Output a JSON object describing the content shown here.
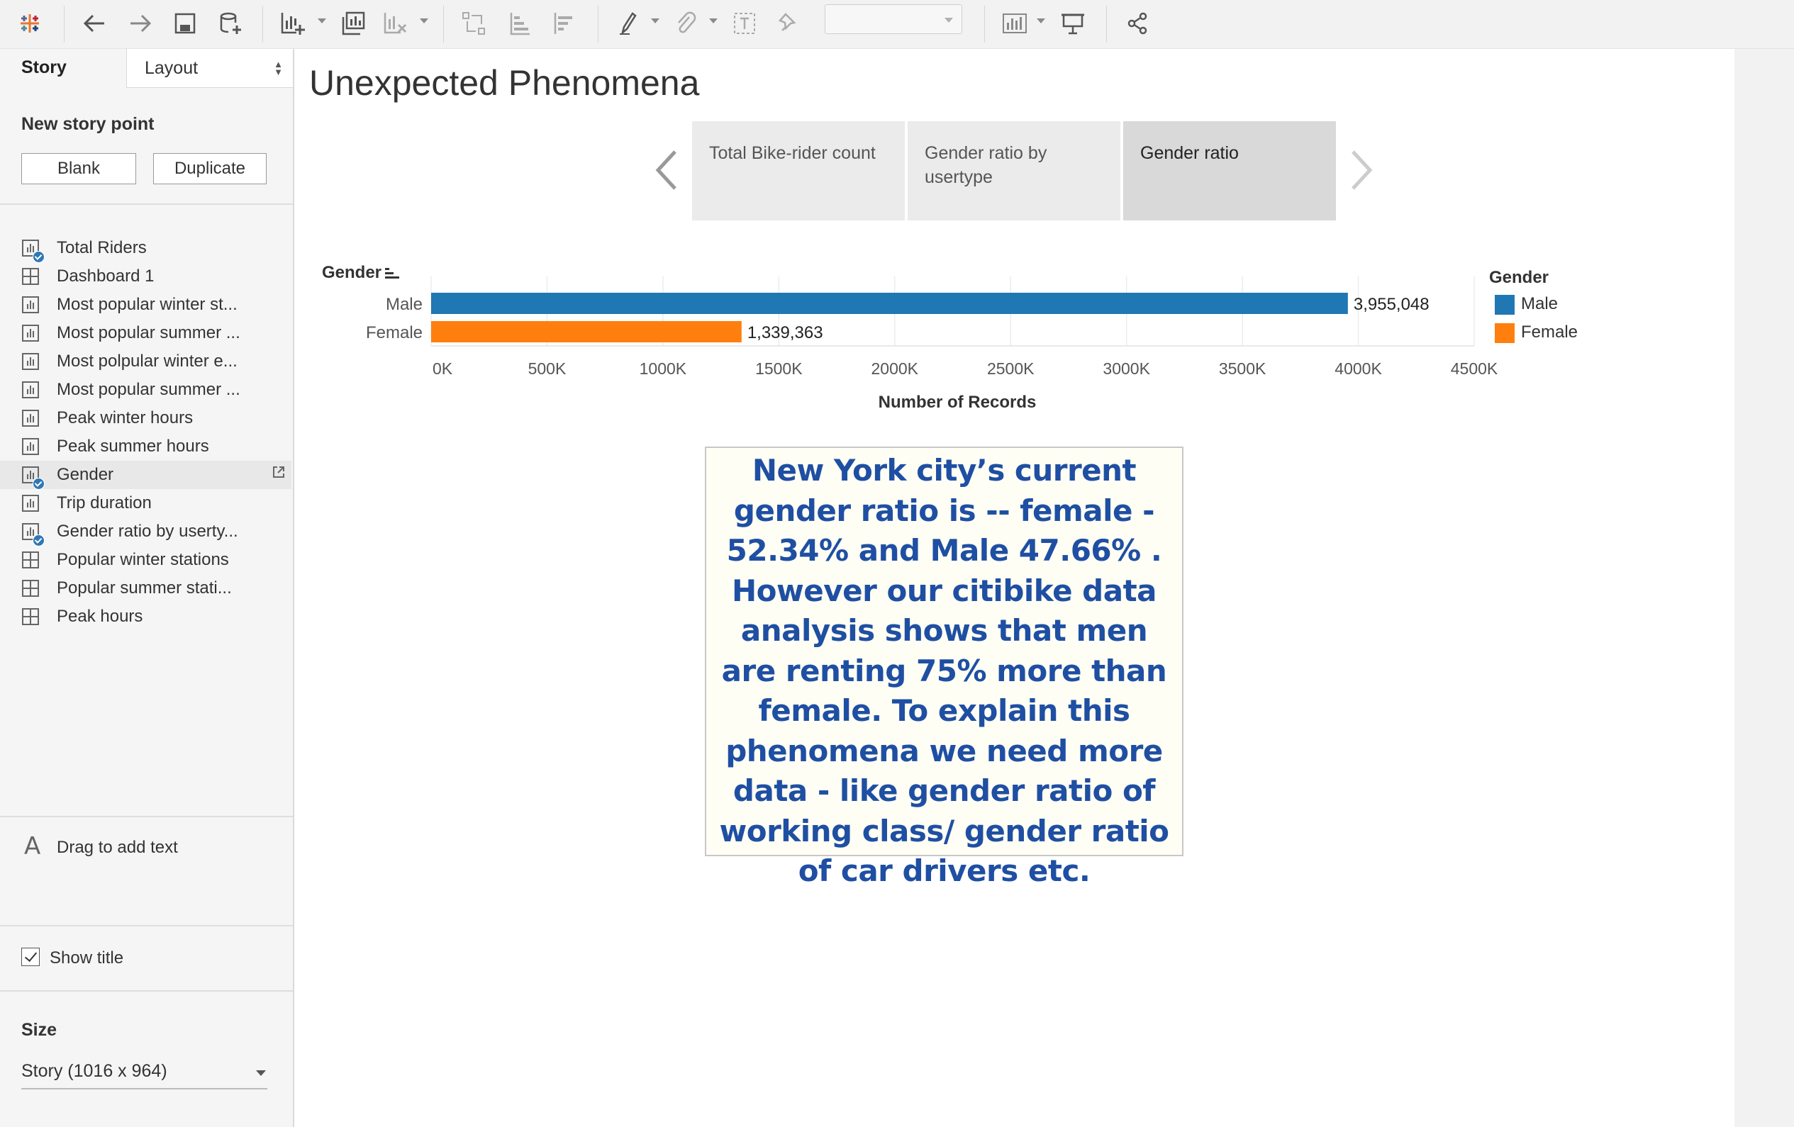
{
  "toolbar": {
    "font_select_value": ""
  },
  "left_pane": {
    "tabs": {
      "story": "Story",
      "layout": "Layout"
    },
    "new_story_point_title": "New story point",
    "buttons": {
      "blank": "Blank",
      "duplicate": "Duplicate"
    },
    "sheets": [
      {
        "label": "Total Riders",
        "icon": "chart-sheet",
        "checked": true
      },
      {
        "label": "Dashboard 1",
        "icon": "dashboard",
        "checked": false
      },
      {
        "label": "Most popular winter st...",
        "icon": "chart-sheet",
        "checked": false
      },
      {
        "label": "Most popular summer ...",
        "icon": "chart-sheet",
        "checked": false
      },
      {
        "label": "Most polpular winter e...",
        "icon": "chart-sheet",
        "checked": false
      },
      {
        "label": "Most popular summer ...",
        "icon": "chart-sheet",
        "checked": false
      },
      {
        "label": "Peak winter hours",
        "icon": "chart-sheet",
        "checked": false
      },
      {
        "label": "Peak summer hours",
        "icon": "chart-sheet",
        "checked": false
      },
      {
        "label": "Gender",
        "icon": "chart-sheet",
        "checked": true,
        "active": true
      },
      {
        "label": "Trip duration",
        "icon": "chart-sheet",
        "checked": false
      },
      {
        "label": "Gender ratio by userty...",
        "icon": "chart-sheet",
        "checked": true
      },
      {
        "label": "Popular winter stations",
        "icon": "dashboard",
        "checked": false
      },
      {
        "label": "Popular summer stati...",
        "icon": "dashboard",
        "checked": false
      },
      {
        "label": "Peak hours",
        "icon": "dashboard",
        "checked": false
      }
    ],
    "drag_to_add_text": "Drag to add text",
    "text_icon_glyph": "A",
    "show_title": {
      "label": "Show title",
      "checked": true
    },
    "size_title": "Size",
    "size_value": "Story (1016 x 964)"
  },
  "story": {
    "title": "Unexpected Phenomena",
    "points": [
      {
        "label": "Total Bike-rider count",
        "active": false
      },
      {
        "label": "Gender ratio by usertype",
        "active": false
      },
      {
        "label": "Gender ratio",
        "active": true
      }
    ]
  },
  "annotation": {
    "text": "New York city’s current gender ratio is -- female - 52.34% and Male 47.66% . However our citibike data analysis shows that men are renting 75% more than female. To explain this phenomena we need more data - like gender ratio of working class/ gender ratio of car drivers etc."
  },
  "chart_data": {
    "type": "bar",
    "orientation": "horizontal",
    "row_header": "Gender",
    "categories": [
      "Male",
      "Female"
    ],
    "values": [
      3955048,
      1339363
    ],
    "data_labels": [
      "3,955,048",
      "1,339,363"
    ],
    "colors": [
      "#1f77b4",
      "#ff7f0e"
    ],
    "xlabel": "Number of Records",
    "xlim": [
      0,
      4500000
    ],
    "x_ticks": [
      0,
      500000,
      1000000,
      1500000,
      2000000,
      2500000,
      3000000,
      3500000,
      4000000,
      4500000
    ],
    "x_tick_labels": [
      "0K",
      "500K",
      "1000K",
      "1500K",
      "2000K",
      "2500K",
      "3000K",
      "3500K",
      "4000K",
      "4500K"
    ],
    "grid": true,
    "legend": {
      "title": "Gender",
      "position": "right",
      "items": [
        {
          "label": "Male",
          "color": "#1f77b4"
        },
        {
          "label": "Female",
          "color": "#ff7f0e"
        }
      ]
    }
  }
}
